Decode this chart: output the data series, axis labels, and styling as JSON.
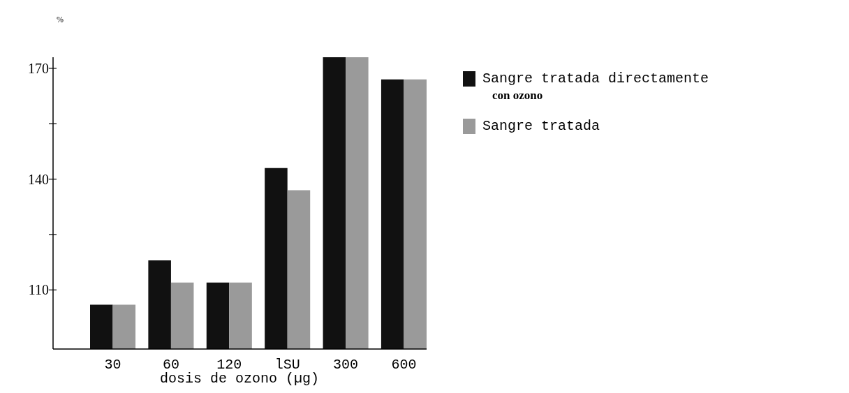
{
  "chart_data": {
    "type": "bar",
    "ylabel": "%",
    "xlabel": "dosis de ozono (µg)",
    "categories": [
      "30",
      "60",
      "120",
      "lSU",
      "300",
      "600"
    ],
    "series": [
      {
        "name": "Sangre tratada directamente con ozono",
        "color": "#111111",
        "values": [
          106,
          118,
          112,
          143,
          173,
          167
        ]
      },
      {
        "name": "Sangre tratada",
        "color": "#9a9a9a",
        "values": [
          106,
          112,
          112,
          137,
          173,
          167
        ]
      }
    ],
    "ylim": [
      94,
      173
    ],
    "yticks": [
      110,
      {
        "value": 125,
        "label": null
      },
      140,
      {
        "value": 155,
        "label": null
      },
      170
    ],
    "grid": false,
    "legend": "right"
  }
}
